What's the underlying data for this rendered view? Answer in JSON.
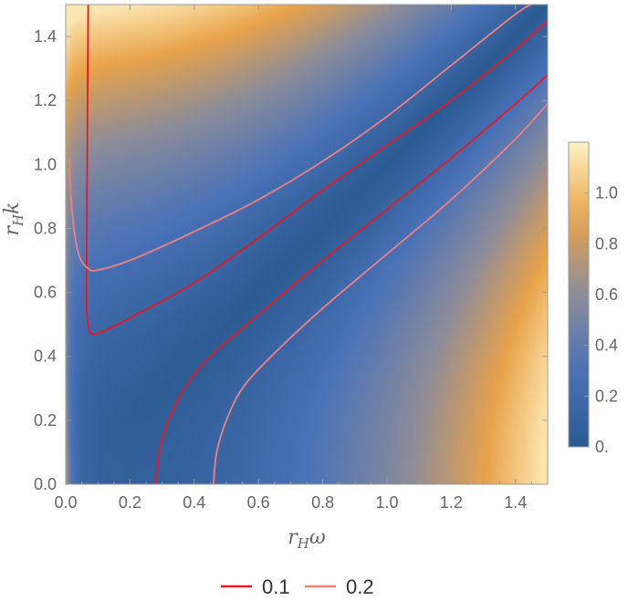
{
  "chart_data": {
    "type": "contour-density",
    "xlabel": {
      "base": "r",
      "sub": "H",
      "sym": "ω"
    },
    "ylabel": {
      "base": "r",
      "sub": "H",
      "sym": "k"
    },
    "xlim": [
      0,
      1.5
    ],
    "ylim": [
      0,
      1.5
    ],
    "x_ticks": [
      "0.0",
      "0.2",
      "0.4",
      "0.6",
      "0.8",
      "1.0",
      "1.2",
      "1.4"
    ],
    "y_ticks": [
      "0.0",
      "0.2",
      "0.4",
      "0.6",
      "0.8",
      "1.0",
      "1.2",
      "1.4"
    ],
    "colorbar": {
      "range": [
        0,
        1.2
      ],
      "ticks": [
        "0.",
        "0.2",
        "0.4",
        "0.6",
        "0.8",
        "1.0"
      ],
      "palette": [
        "#2b5a91",
        "#4a72b8",
        "#8c8c9a",
        "#e9a34a",
        "#fff3c4"
      ]
    },
    "series": [
      {
        "name": "0.1",
        "color": "#e8191f",
        "curves": [
          [
            [
              0.07,
              1.5
            ],
            [
              0.065,
              0.7
            ],
            [
              0.065,
              0.55
            ],
            [
              0.07,
              0.5
            ],
            [
              0.08,
              0.47
            ],
            [
              0.12,
              0.48
            ],
            [
              0.2,
              0.52
            ],
            [
              0.4,
              0.63
            ],
            [
              0.6,
              0.77
            ],
            [
              0.8,
              0.92
            ],
            [
              1.0,
              1.06
            ],
            [
              1.2,
              1.2
            ],
            [
              1.4,
              1.36
            ],
            [
              1.5,
              1.45
            ]
          ],
          [
            [
              0.28,
              0.0
            ],
            [
              0.29,
              0.1
            ],
            [
              0.32,
              0.2
            ],
            [
              0.37,
              0.3
            ],
            [
              0.45,
              0.4
            ],
            [
              0.6,
              0.53
            ],
            [
              0.8,
              0.7
            ],
            [
              1.0,
              0.86
            ],
            [
              1.2,
              1.02
            ],
            [
              1.4,
              1.19
            ],
            [
              1.5,
              1.28
            ]
          ]
        ]
      },
      {
        "name": "0.2",
        "color": "#f08080",
        "curves": [
          [
            [
              0.01,
              1.02
            ],
            [
              0.02,
              0.85
            ],
            [
              0.04,
              0.72
            ],
            [
              0.07,
              0.675
            ],
            [
              0.1,
              0.67
            ],
            [
              0.2,
              0.7
            ],
            [
              0.4,
              0.79
            ],
            [
              0.6,
              0.89
            ],
            [
              0.8,
              1.01
            ],
            [
              1.0,
              1.15
            ],
            [
              1.2,
              1.31
            ],
            [
              1.4,
              1.47
            ],
            [
              1.45,
              1.5
            ]
          ],
          [
            [
              0.46,
              0.0
            ],
            [
              0.47,
              0.1
            ],
            [
              0.5,
              0.2
            ],
            [
              0.55,
              0.3
            ],
            [
              0.64,
              0.4
            ],
            [
              0.8,
              0.55
            ],
            [
              1.0,
              0.72
            ],
            [
              1.2,
              0.89
            ],
            [
              1.4,
              1.08
            ],
            [
              1.5,
              1.19
            ]
          ]
        ]
      }
    ],
    "legend": {
      "position": "bottom-center"
    }
  }
}
